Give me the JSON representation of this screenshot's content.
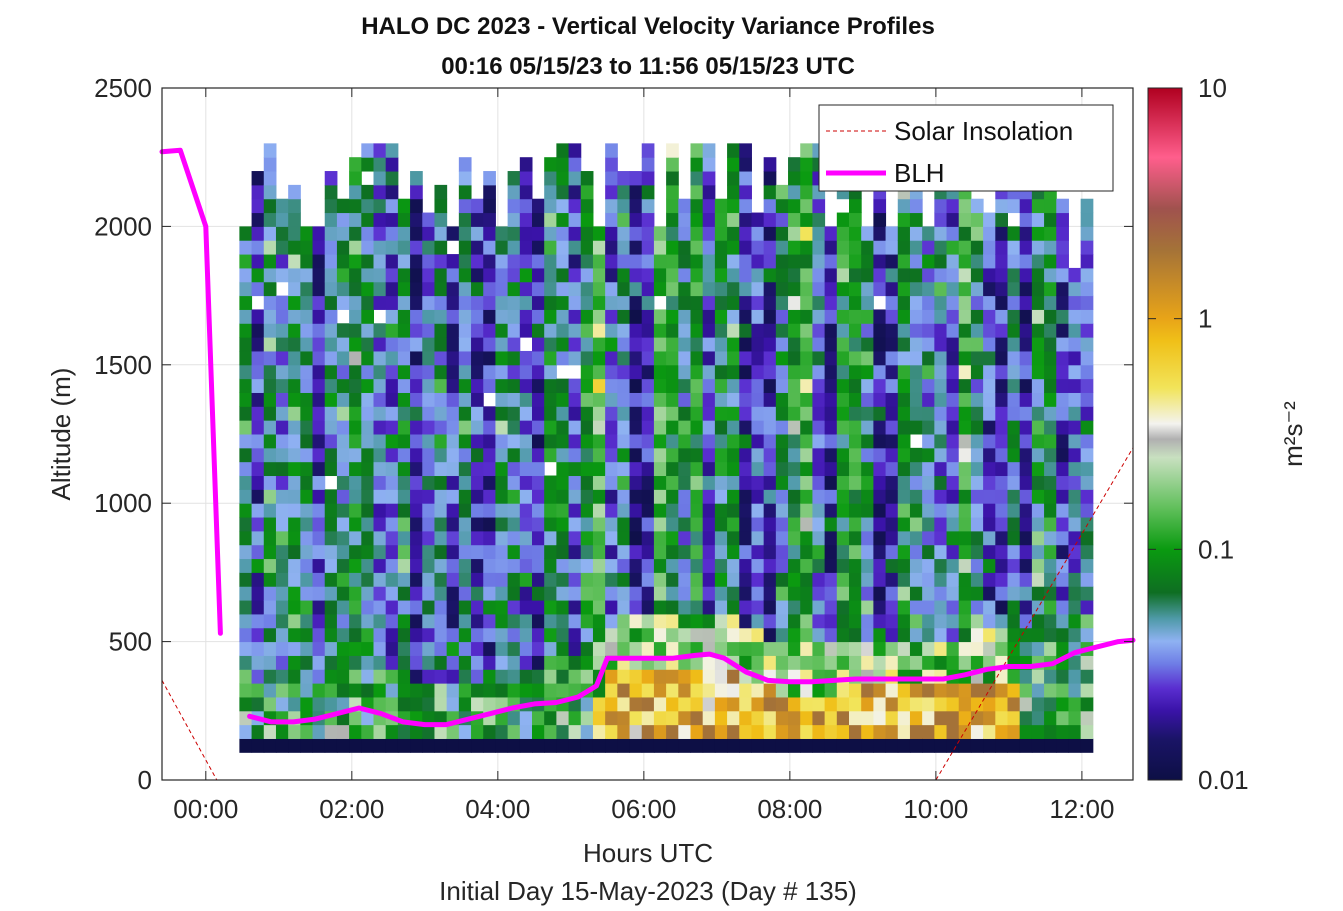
{
  "chart_data": {
    "type": "heatmap",
    "title_line1": "HALO DC 2023 - Vertical Velocity Variance Profiles",
    "title_line2": "00:16 05/15/23 to 11:56 05/15/23  UTC",
    "xlabel": "Hours UTC",
    "xlabel2": "Initial Day 15-May-2023 (Day # 135)",
    "ylabel": "Altitude (m)",
    "colorbar_label": "m²s⁻²",
    "x_range_hours": [
      -0.6,
      12.7
    ],
    "y_range_m": [
      0,
      2500
    ],
    "x_ticks": [
      {
        "value": 0,
        "label": "00:00"
      },
      {
        "value": 2,
        "label": "02:00"
      },
      {
        "value": 4,
        "label": "04:00"
      },
      {
        "value": 6,
        "label": "06:00"
      },
      {
        "value": 8,
        "label": "08:00"
      },
      {
        "value": 10,
        "label": "10:00"
      },
      {
        "value": 12,
        "label": "12:00"
      }
    ],
    "y_ticks": [
      {
        "value": 0,
        "label": "0"
      },
      {
        "value": 500,
        "label": "500"
      },
      {
        "value": 1000,
        "label": "1000"
      },
      {
        "value": 1500,
        "label": "1500"
      },
      {
        "value": 2000,
        "label": "2000"
      },
      {
        "value": 2500,
        "label": "2500"
      }
    ],
    "colorbar": {
      "scale": "log",
      "range": [
        0.01,
        10
      ],
      "ticks": [
        {
          "value": 0.01,
          "label": "0.01"
        },
        {
          "value": 0.1,
          "label": "0.1"
        },
        {
          "value": 1,
          "label": "1"
        },
        {
          "value": 10,
          "label": "10"
        }
      ],
      "stops": [
        {
          "v": 0.01,
          "color": "#0d0f45"
        },
        {
          "v": 0.015,
          "color": "#1a1466"
        },
        {
          "v": 0.02,
          "color": "#3a13a8"
        },
        {
          "v": 0.025,
          "color": "#5a2ed0"
        },
        {
          "v": 0.032,
          "color": "#6f7ee6"
        },
        {
          "v": 0.04,
          "color": "#8fb2f2"
        },
        {
          "v": 0.05,
          "color": "#4f9aa8"
        },
        {
          "v": 0.065,
          "color": "#0e6e22"
        },
        {
          "v": 0.1,
          "color": "#0a9a10"
        },
        {
          "v": 0.15,
          "color": "#5fbf5a"
        },
        {
          "v": 0.25,
          "color": "#c8e0c0"
        },
        {
          "v": 0.3,
          "color": "#b0b0b0"
        },
        {
          "v": 0.35,
          "color": "#f3f3ef"
        },
        {
          "v": 0.5,
          "color": "#f2e45a"
        },
        {
          "v": 0.8,
          "color": "#f0c018"
        },
        {
          "v": 1.0,
          "color": "#e8a418"
        },
        {
          "v": 2.0,
          "color": "#a47238"
        },
        {
          "v": 3.0,
          "color": "#a0524e"
        },
        {
          "v": 5.0,
          "color": "#ff5e8c"
        },
        {
          "v": 10.0,
          "color": "#b00020"
        }
      ]
    },
    "legend": {
      "placement": "top-right",
      "entries": [
        {
          "name": "Solar Insolation",
          "color": "#cc0000",
          "style": "dashed"
        },
        {
          "name": "BLH",
          "color": "#ff00ff",
          "style": "solid"
        }
      ]
    },
    "heatmap": {
      "bin_start_hour": 0.46,
      "bin_hours": 0.167,
      "bin_alt_start_m": 100,
      "bin_alt_m": 50,
      "seed": 135
    },
    "series": [
      {
        "name": "BLH",
        "x": [
          -0.6,
          -0.35,
          0.0,
          0.2,
          null,
          0.6,
          0.9,
          1.2,
          1.5,
          1.8,
          2.1,
          2.4,
          2.7,
          3.0,
          3.3,
          3.6,
          3.9,
          4.2,
          4.5,
          4.8,
          5.1,
          5.35,
          5.5,
          5.8,
          6.1,
          6.4,
          6.7,
          6.9,
          7.1,
          7.4,
          7.7,
          8.0,
          8.3,
          8.6,
          8.9,
          9.2,
          9.5,
          9.8,
          10.1,
          10.4,
          10.7,
          11.0,
          11.3,
          11.6,
          11.9,
          12.2,
          12.5,
          12.7
        ],
        "y": [
          2270,
          2275,
          2000,
          530,
          null,
          230,
          210,
          210,
          220,
          240,
          260,
          240,
          210,
          200,
          200,
          220,
          240,
          260,
          275,
          280,
          300,
          340,
          440,
          440,
          440,
          440,
          450,
          455,
          440,
          390,
          360,
          355,
          355,
          360,
          365,
          365,
          365,
          365,
          365,
          380,
          400,
          410,
          410,
          420,
          460,
          480,
          500,
          505
        ]
      },
      {
        "name": "Solar Insolation",
        "x": [
          -0.6,
          0.15,
          10.0,
          12.7
        ],
        "y": [
          360,
          0,
          0,
          1200
        ]
      }
    ]
  }
}
